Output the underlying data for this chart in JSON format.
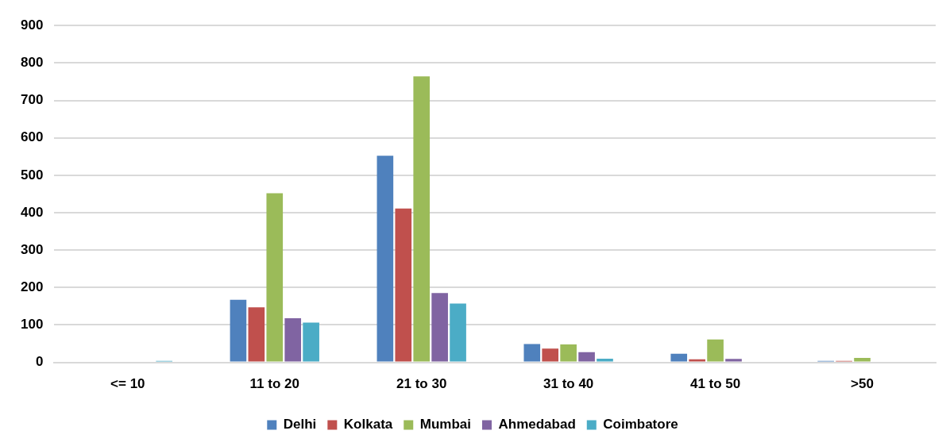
{
  "chart_data": {
    "type": "bar",
    "categories": [
      "<= 10",
      "11 to 20",
      "21 to 30",
      "31 to 40",
      "41 to 50",
      ">50"
    ],
    "series": [
      {
        "name": "Delhi",
        "color": "#4f81bd",
        "values": [
          0,
          167,
          552,
          49,
          23,
          4
        ]
      },
      {
        "name": "Kolkata",
        "color": "#c0504d",
        "values": [
          0,
          147,
          411,
          37,
          8,
          4
        ]
      },
      {
        "name": "Mumbai",
        "color": "#9bbb59",
        "values": [
          0,
          452,
          764,
          48,
          61,
          12
        ]
      },
      {
        "name": "Ahmedabad",
        "color": "#8064a2",
        "values": [
          0,
          118,
          185,
          27,
          9,
          0
        ]
      },
      {
        "name": "Coimbatore",
        "color": "#4bacc6",
        "values": [
          4,
          106,
          157,
          10,
          0,
          0
        ]
      }
    ],
    "ylim": [
      0,
      900
    ],
    "yticks": [
      0,
      100,
      200,
      300,
      400,
      500,
      600,
      700,
      800,
      900
    ],
    "grid": "y",
    "legend": "bottom"
  }
}
